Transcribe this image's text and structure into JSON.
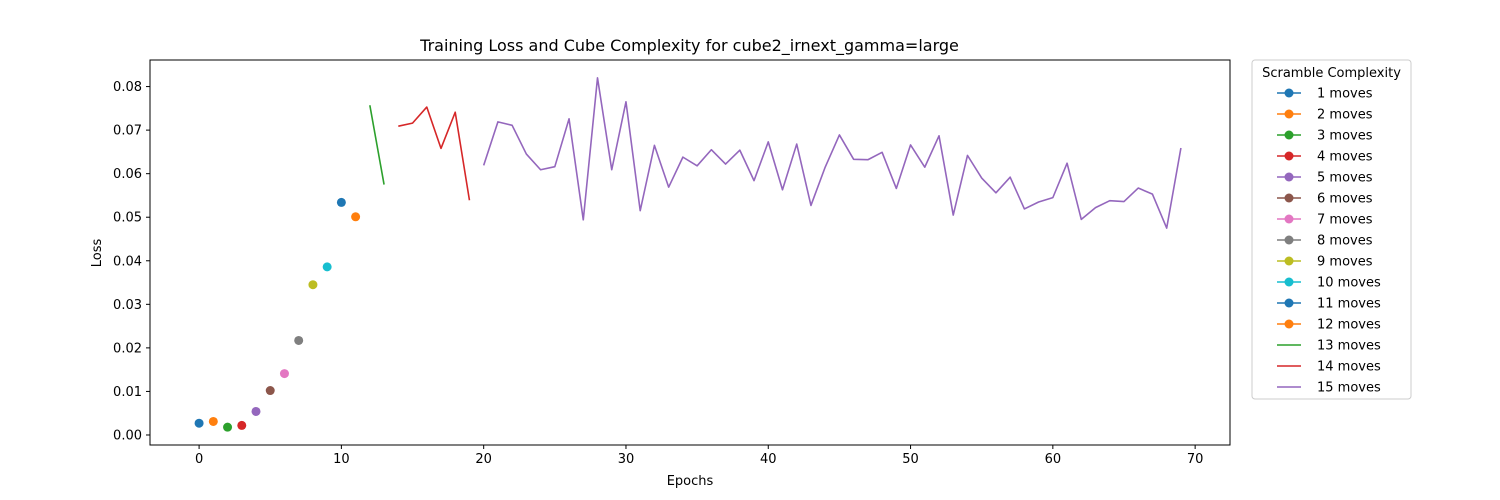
{
  "chart_data": {
    "type": "line",
    "title": "Training Loss and Cube Complexity for cube2_irnext_gamma=large",
    "xlabel": "Epochs",
    "ylabel": "Loss",
    "xlim": [
      -3.45,
      72.45
    ],
    "ylim": [
      -0.0023,
      0.0861
    ],
    "xticks": [
      0,
      10,
      20,
      30,
      40,
      50,
      60,
      70
    ],
    "yticks": [
      0.0,
      0.01,
      0.02,
      0.03,
      0.04,
      0.05,
      0.06,
      0.07,
      0.08
    ],
    "ytick_labels": [
      "0.00",
      "0.01",
      "0.02",
      "0.03",
      "0.04",
      "0.05",
      "0.06",
      "0.07",
      "0.08"
    ],
    "grid": false,
    "legend": {
      "title": "Scramble Complexity",
      "placement": "outside-right"
    },
    "series": [
      {
        "name": "1 moves",
        "color": "#1f77b4",
        "marker": true,
        "x": [
          0
        ],
        "y": [
          0.0027
        ]
      },
      {
        "name": "2 moves",
        "color": "#ff7f0e",
        "marker": true,
        "x": [
          1
        ],
        "y": [
          0.0031
        ]
      },
      {
        "name": "3 moves",
        "color": "#2ca02c",
        "marker": true,
        "x": [
          2
        ],
        "y": [
          0.0018
        ]
      },
      {
        "name": "4 moves",
        "color": "#d62728",
        "marker": true,
        "x": [
          3
        ],
        "y": [
          0.0022
        ]
      },
      {
        "name": "5 moves",
        "color": "#9467bd",
        "marker": true,
        "x": [
          4
        ],
        "y": [
          0.0054
        ]
      },
      {
        "name": "6 moves",
        "color": "#8c564b",
        "marker": true,
        "x": [
          5
        ],
        "y": [
          0.0102
        ]
      },
      {
        "name": "7 moves",
        "color": "#e377c2",
        "marker": true,
        "x": [
          6
        ],
        "y": [
          0.0141
        ]
      },
      {
        "name": "8 moves",
        "color": "#7f7f7f",
        "marker": true,
        "x": [
          7
        ],
        "y": [
          0.0217
        ]
      },
      {
        "name": "9 moves",
        "color": "#bcbd22",
        "marker": true,
        "x": [
          8
        ],
        "y": [
          0.0345
        ]
      },
      {
        "name": "10 moves",
        "color": "#17becf",
        "marker": true,
        "x": [
          9
        ],
        "y": [
          0.0386
        ]
      },
      {
        "name": "11 moves",
        "color": "#1f77b4",
        "marker": true,
        "x": [
          10
        ],
        "y": [
          0.0534
        ]
      },
      {
        "name": "12 moves",
        "color": "#ff7f0e",
        "marker": true,
        "x": [
          11
        ],
        "y": [
          0.0501
        ]
      },
      {
        "name": "13 moves",
        "color": "#2ca02c",
        "marker": false,
        "x": [
          12,
          13
        ],
        "y": [
          0.0757,
          0.0575
        ]
      },
      {
        "name": "14 moves",
        "color": "#d62728",
        "marker": false,
        "x": [
          14,
          15,
          16,
          17,
          18,
          19
        ],
        "y": [
          0.0709,
          0.0716,
          0.0753,
          0.0658,
          0.0741,
          0.0539
        ]
      },
      {
        "name": "15 moves",
        "color": "#9467bd",
        "marker": false,
        "x": [
          20,
          21,
          22,
          23,
          24,
          25,
          26,
          27,
          28,
          29,
          30,
          31,
          32,
          33,
          34,
          35,
          36,
          37,
          38,
          39,
          40,
          41,
          42,
          43,
          44,
          45,
          46,
          47,
          48,
          49,
          50,
          51,
          52,
          53,
          54,
          55,
          56,
          57,
          58,
          59,
          60,
          61,
          62,
          63,
          64,
          65,
          66,
          67,
          68,
          69
        ],
        "y": [
          0.0619,
          0.0719,
          0.0711,
          0.0645,
          0.0609,
          0.0616,
          0.0726,
          0.0494,
          0.082,
          0.0609,
          0.0765,
          0.0515,
          0.0665,
          0.0569,
          0.0638,
          0.0618,
          0.0655,
          0.0622,
          0.0654,
          0.0584,
          0.0673,
          0.0563,
          0.0668,
          0.0527,
          0.0615,
          0.0689,
          0.0633,
          0.0632,
          0.0649,
          0.0566,
          0.0666,
          0.0615,
          0.0687,
          0.0505,
          0.0642,
          0.059,
          0.0556,
          0.0592,
          0.0519,
          0.0535,
          0.0545,
          0.0624,
          0.0495,
          0.0522,
          0.0538,
          0.0536,
          0.0567,
          0.0553,
          0.0475,
          0.0659
        ]
      }
    ]
  }
}
